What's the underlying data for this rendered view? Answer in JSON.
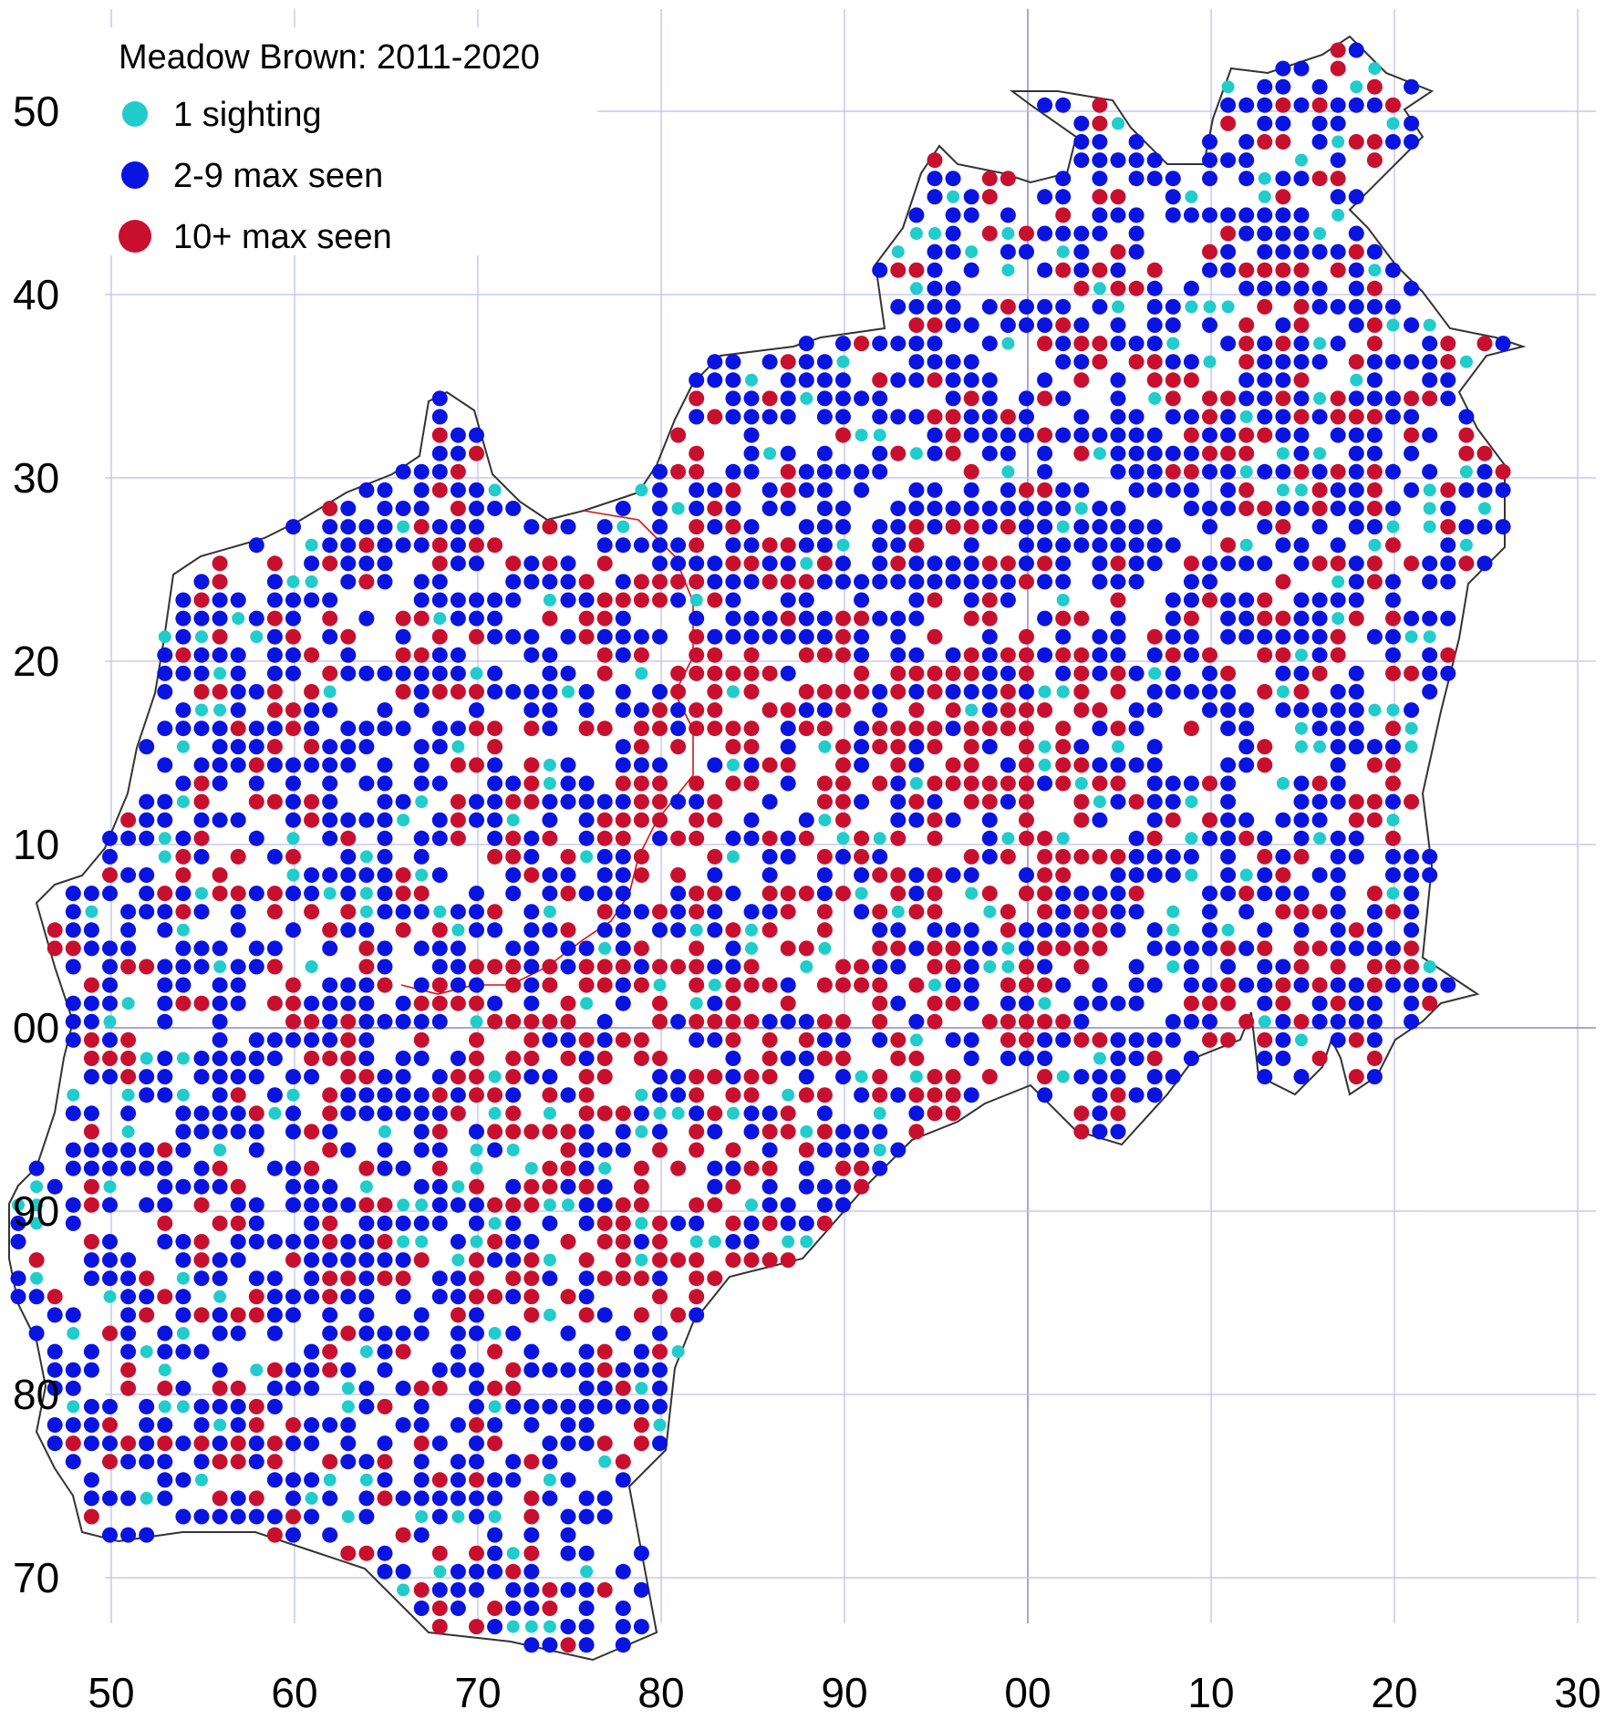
{
  "map": {
    "title": "Meadow Brown:  2011-2020",
    "x_tick_labels": [
      "50",
      "60",
      "70",
      "80",
      "90",
      "00",
      "10",
      "20",
      "30"
    ],
    "y_tick_labels": [
      "50",
      "40",
      "30",
      "20",
      "10",
      "00",
      "90",
      "80",
      "70"
    ],
    "legend": [
      {
        "label": "1 sighting",
        "color": "#20cccc"
      },
      {
        "label": "2-9 max seen",
        "color": "#0a14e0"
      },
      {
        "label": "10+ max seen",
        "color": "#c8102e"
      }
    ],
    "colors": {
      "grid": "#c8c8f0",
      "axis_line": "#8888cc",
      "boundary": "#333333",
      "internal_boundary": "#dd1111"
    }
  }
}
